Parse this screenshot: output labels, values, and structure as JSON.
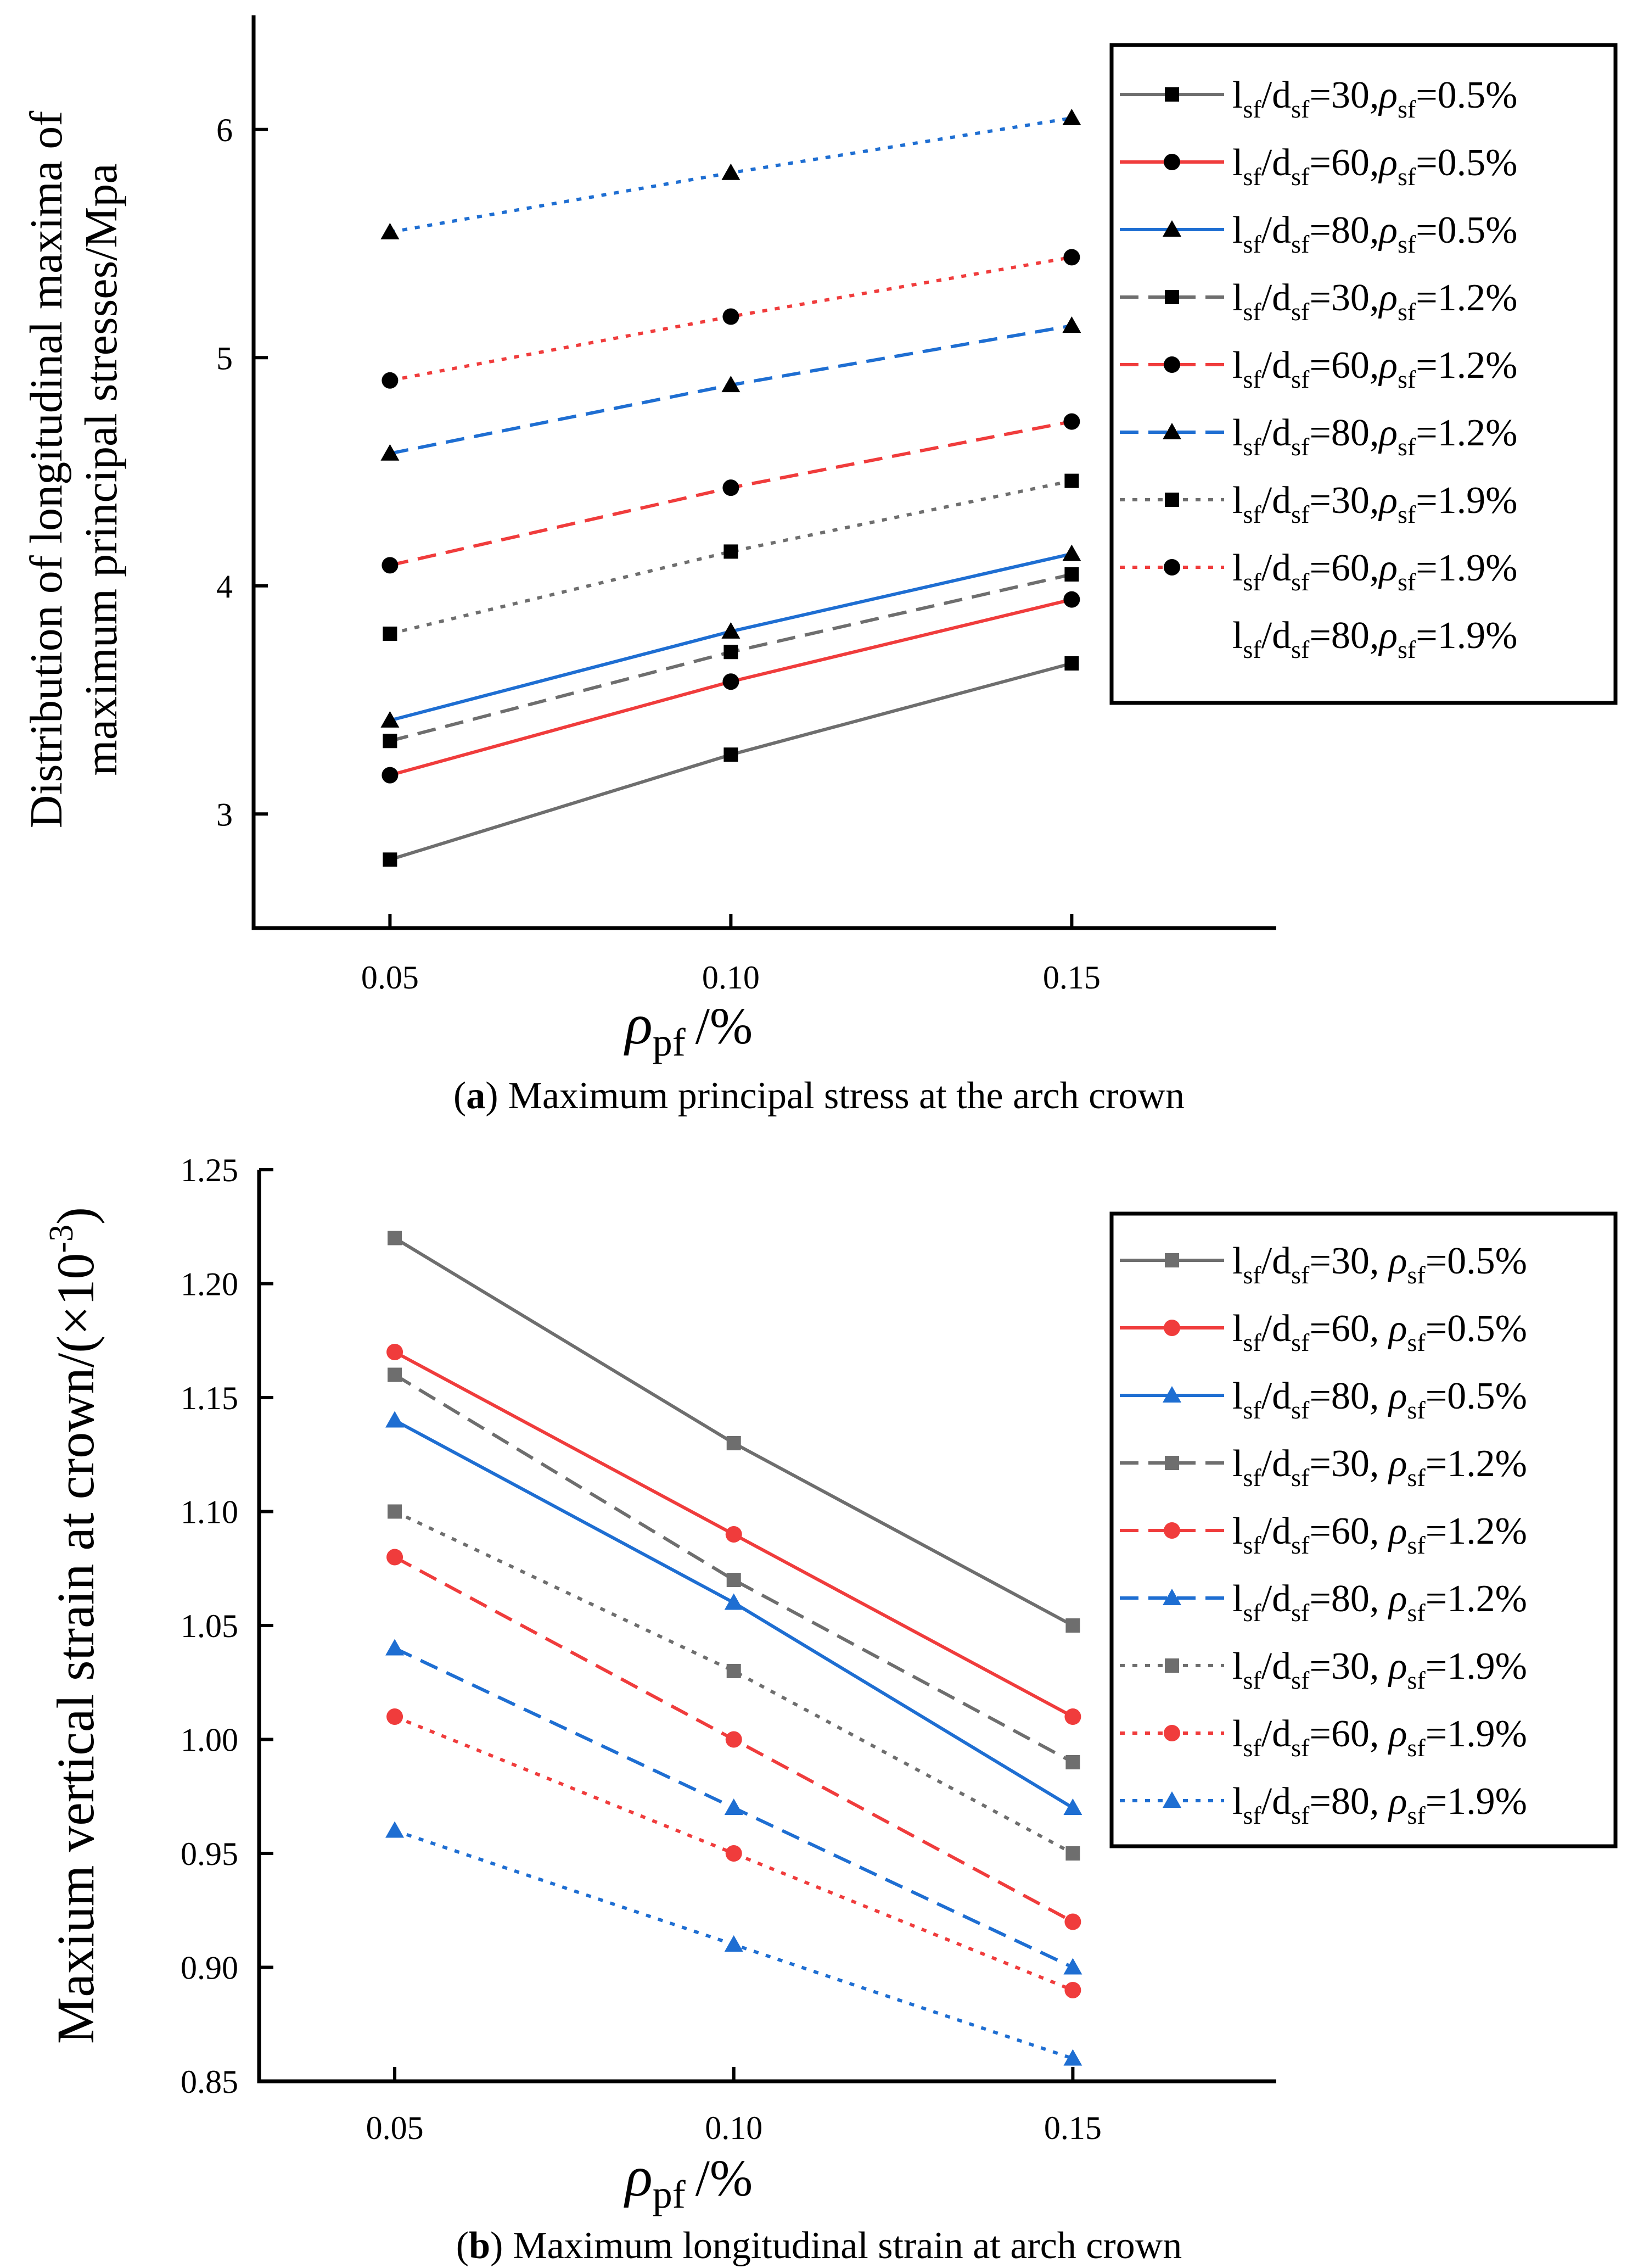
{
  "chart_data": [
    {
      "type": "line",
      "id": "a",
      "caption_label": "a",
      "caption_open": "(",
      "caption_close": ")",
      "caption_text": "Maximum principal stress at the arch crown",
      "ylabel_lines": [
        "Distribution of longitudinal maxima of",
        "maximum principal stresses/Mpa"
      ],
      "xlabel_symbol": "ρ",
      "xlabel_sub": "pf",
      "xlabel_unit": "/%",
      "x": [
        0.05,
        0.1,
        0.15
      ],
      "xticks": [
        "0.05",
        "0.10",
        "0.15"
      ],
      "xlim": [
        0.03,
        0.18
      ],
      "yticks": [
        "3",
        "4",
        "5",
        "6"
      ],
      "ytick_values": [
        3,
        4,
        5,
        6
      ],
      "ylim": [
        2.5,
        6.5
      ],
      "legend_position": "top-right",
      "marker_fill": "black",
      "series": [
        {
          "name": "lsf/dsf=30,ρsf=0.5%",
          "ratio": "30",
          "sep": ",",
          "rho": "0.5%",
          "color": "#6e6e6e",
          "dash": "solid",
          "marker": "square",
          "values": [
            2.8,
            3.26,
            3.66
          ],
          "show_line": true
        },
        {
          "name": "lsf/dsf=60,ρsf=0.5%",
          "ratio": "60",
          "sep": ",",
          "rho": "0.5%",
          "color": "#f03c3c",
          "dash": "solid",
          "marker": "circle",
          "values": [
            3.17,
            3.58,
            3.94
          ],
          "show_line": true
        },
        {
          "name": "lsf/dsf=80,ρsf=0.5%",
          "ratio": "80",
          "sep": ",",
          "rho": "0.5%",
          "color": "#1e6ed2",
          "dash": "solid",
          "marker": "triangle",
          "values": [
            3.41,
            3.8,
            4.14
          ],
          "show_line": true
        },
        {
          "name": "lsf/dsf=30,ρsf=1.2%",
          "ratio": "30",
          "sep": ",",
          "rho": "1.2%",
          "color": "#6e6e6e",
          "dash": "dashed",
          "marker": "square",
          "values": [
            3.32,
            3.71,
            4.05
          ],
          "show_line": true
        },
        {
          "name": "lsf/dsf=60,ρsf=1.2%",
          "ratio": "60",
          "sep": ",",
          "rho": "1.2%",
          "color": "#f03c3c",
          "dash": "dashed",
          "marker": "circle",
          "values": [
            4.09,
            4.43,
            4.72
          ],
          "show_line": true
        },
        {
          "name": "lsf/dsf=80,ρsf=1.2%",
          "ratio": "80",
          "sep": ",",
          "rho": "1.2%",
          "color": "#1e6ed2",
          "dash": "dashed",
          "marker": "triangle",
          "values": [
            4.58,
            4.88,
            5.14
          ],
          "show_line": true
        },
        {
          "name": "lsf/dsf=30,ρsf=1.9%",
          "ratio": "30",
          "sep": ",",
          "rho": "1.9%",
          "color": "#6e6e6e",
          "dash": "dotted",
          "marker": "square",
          "values": [
            3.79,
            4.15,
            4.46
          ],
          "show_line": true
        },
        {
          "name": "lsf/dsf=60,ρsf=1.9%",
          "ratio": "60",
          "sep": ",",
          "rho": "1.9%",
          "color": "#f03c3c",
          "dash": "dotted",
          "marker": "circle",
          "values": [
            4.9,
            5.18,
            5.44
          ],
          "show_line": true
        },
        {
          "name": "lsf/dsf=80,ρsf=1.9%",
          "ratio": "80",
          "sep": ",",
          "rho": "1.9%",
          "color": "#1e6ed2",
          "dash": "dotted",
          "marker": "triangle",
          "values": [
            5.55,
            5.81,
            6.05
          ],
          "show_line": false
        }
      ]
    },
    {
      "type": "line",
      "id": "b",
      "caption_label": "b",
      "caption_open": "(",
      "caption_close": ")",
      "caption_text": "Maximum longitudinal strain at arch crown",
      "ylabel_text": "Maxium vertical strain at crown/(×10",
      "ylabel_sup": "-3",
      "ylabel_close": ")",
      "xlabel_symbol": "ρ",
      "xlabel_sub": "pf",
      "xlabel_unit": "/%",
      "x": [
        0.05,
        0.1,
        0.15
      ],
      "xticks": [
        "0.05",
        "0.10",
        "0.15"
      ],
      "xlim": [
        0.03,
        0.18
      ],
      "yticks": [
        "0.85",
        "0.90",
        "0.95",
        "1.00",
        "1.05",
        "1.10",
        "1.15",
        "1.20",
        "1.25"
      ],
      "ytick_values": [
        0.85,
        0.9,
        0.95,
        1.0,
        1.05,
        1.1,
        1.15,
        1.2,
        1.25
      ],
      "ylim": [
        0.85,
        1.25
      ],
      "legend_position": "top-right",
      "marker_fill": "series",
      "series": [
        {
          "name": "lsf/dsf=30, ρsf=0.5%",
          "ratio": "30",
          "sep": ", ",
          "rho": "0.5%",
          "color": "#6e6e6e",
          "dash": "solid",
          "marker": "square",
          "values": [
            1.22,
            1.13,
            1.05
          ],
          "show_line": true
        },
        {
          "name": "lsf/dsf=60, ρsf=0.5%",
          "ratio": "60",
          "sep": ", ",
          "rho": "0.5%",
          "color": "#f03c3c",
          "dash": "solid",
          "marker": "circle",
          "values": [
            1.17,
            1.09,
            1.01
          ],
          "show_line": true
        },
        {
          "name": "lsf/dsf=80, ρsf=0.5%",
          "ratio": "80",
          "sep": ", ",
          "rho": "0.5%",
          "color": "#1e6ed2",
          "dash": "solid",
          "marker": "triangle",
          "values": [
            1.14,
            1.06,
            0.97
          ],
          "show_line": true
        },
        {
          "name": "lsf/dsf=30, ρsf=1.2%",
          "ratio": "30",
          "sep": ", ",
          "rho": "1.2%",
          "color": "#6e6e6e",
          "dash": "dashed",
          "marker": "square",
          "values": [
            1.16,
            1.07,
            0.99
          ],
          "show_line": true
        },
        {
          "name": "lsf/dsf=60, ρsf=1.2%",
          "ratio": "60",
          "sep": ", ",
          "rho": "1.2%",
          "color": "#f03c3c",
          "dash": "dashed",
          "marker": "circle",
          "values": [
            1.08,
            1.0,
            0.92
          ],
          "show_line": true
        },
        {
          "name": "lsf/dsf=80, ρsf=1.2%",
          "ratio": "80",
          "sep": ", ",
          "rho": "1.2%",
          "color": "#1e6ed2",
          "dash": "dashed",
          "marker": "triangle",
          "values": [
            1.04,
            0.97,
            0.9
          ],
          "show_line": true
        },
        {
          "name": "lsf/dsf=30, ρsf=1.9%",
          "ratio": "30",
          "sep": ", ",
          "rho": "1.9%",
          "color": "#6e6e6e",
          "dash": "dotted",
          "marker": "square",
          "values": [
            1.1,
            1.03,
            0.95
          ],
          "show_line": true
        },
        {
          "name": "lsf/dsf=60, ρsf=1.9%",
          "ratio": "60",
          "sep": ", ",
          "rho": "1.9%",
          "color": "#f03c3c",
          "dash": "dotted",
          "marker": "circle",
          "values": [
            1.01,
            0.95,
            0.89
          ],
          "show_line": true
        },
        {
          "name": "lsf/dsf=80, ρsf=1.9%",
          "ratio": "80",
          "sep": ", ",
          "rho": "1.9%",
          "color": "#1e6ed2",
          "dash": "dotted",
          "marker": "triangle",
          "values": [
            0.96,
            0.91,
            0.86
          ],
          "show_line": true
        }
      ]
    }
  ]
}
